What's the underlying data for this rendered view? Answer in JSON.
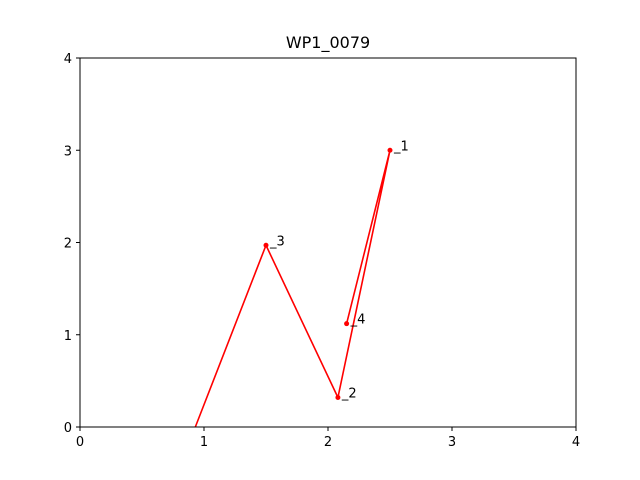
{
  "chart_data": {
    "type": "line",
    "title": "WP1_0079",
    "xlabel": "",
    "ylabel": "",
    "xlim": [
      0,
      4
    ],
    "ylim": [
      0,
      4
    ],
    "xticks": [
      0,
      1,
      2,
      3,
      4
    ],
    "yticks": [
      0,
      1,
      2,
      3,
      4
    ],
    "grid": false,
    "color": "#ff0000",
    "path": [
      {
        "x": 0.93,
        "y": 0.0
      },
      {
        "x": 1.5,
        "y": 1.97
      },
      {
        "x": 2.08,
        "y": 0.32
      },
      {
        "x": 2.5,
        "y": 3.0
      },
      {
        "x": 2.15,
        "y": 1.12
      }
    ],
    "points": [
      {
        "label": "1",
        "x": 2.5,
        "y": 3.0
      },
      {
        "label": "2",
        "x": 2.08,
        "y": 0.32
      },
      {
        "label": "3",
        "x": 1.5,
        "y": 1.97
      },
      {
        "label": "4",
        "x": 2.15,
        "y": 1.12
      }
    ]
  }
}
